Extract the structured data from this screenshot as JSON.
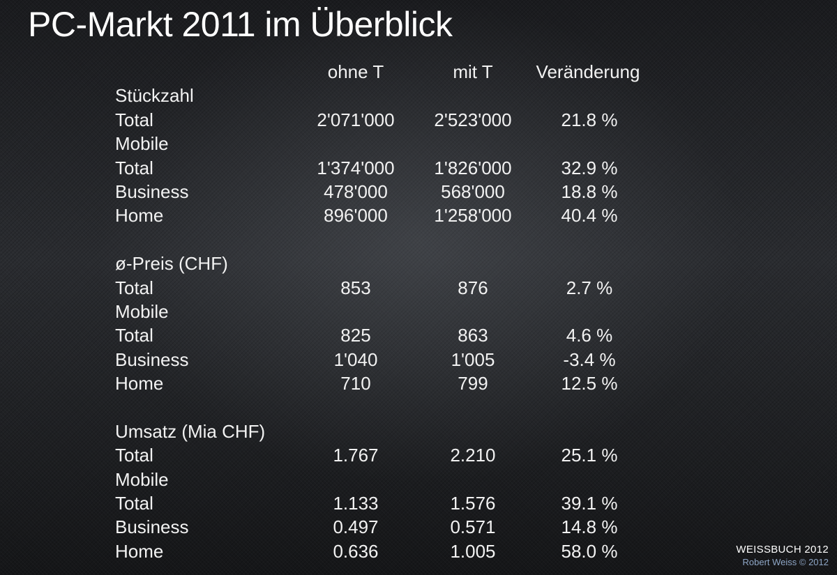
{
  "title": "PC-Markt 2011 im Überblick",
  "columns": [
    "ohne T",
    "mit T",
    "Veränderung"
  ],
  "rows": [
    {
      "label": "Stückzahl"
    },
    {
      "label": "Total",
      "v1": "2'071'000",
      "v2": "2'523'000",
      "pct": "21.8 %"
    },
    {
      "label": "Mobile"
    },
    {
      "label": "Total",
      "v1": "1'374'000",
      "v2": "1'826'000",
      "pct": "32.9 %"
    },
    {
      "label": "Business",
      "v1": "478'000",
      "v2": "568'000",
      "pct": "18.8 %"
    },
    {
      "label": "Home",
      "v1": "896'000",
      "v2": "1'258'000",
      "pct": "40.4 %"
    },
    {
      "blank": true
    },
    {
      "label": "ø-Preis (CHF)"
    },
    {
      "label": "Total",
      "v1": "853",
      "v2": "876",
      "pct": "2.7 %"
    },
    {
      "label": "Mobile"
    },
    {
      "label": "Total",
      "v1": "825",
      "v2": "863",
      "pct": "4.6 %"
    },
    {
      "label": "Business",
      "v1": "1'040",
      "v2": "1'005",
      "pct": "-3.4 %"
    },
    {
      "label": "Home",
      "v1": "710",
      "v2": "799",
      "pct": "12.5 %"
    },
    {
      "blank": true
    },
    {
      "label": "Umsatz (Mia CHF)"
    },
    {
      "label": "Total",
      "v1": "1.767",
      "v2": "2.210",
      "pct": "25.1 %"
    },
    {
      "label": "Mobile"
    },
    {
      "label": "Total",
      "v1": "1.133",
      "v2": "1.576",
      "pct": "39.1 %"
    },
    {
      "label": "Business",
      "v1": "0.497",
      "v2": "0.571",
      "pct": "14.8 %"
    },
    {
      "label": "Home",
      "v1": "0.636",
      "v2": "1.005",
      "pct": "58.0 %"
    }
  ],
  "footer": {
    "brand": "WEISSBUCH 2012",
    "copyright": "Robert Weiss © 2012"
  }
}
